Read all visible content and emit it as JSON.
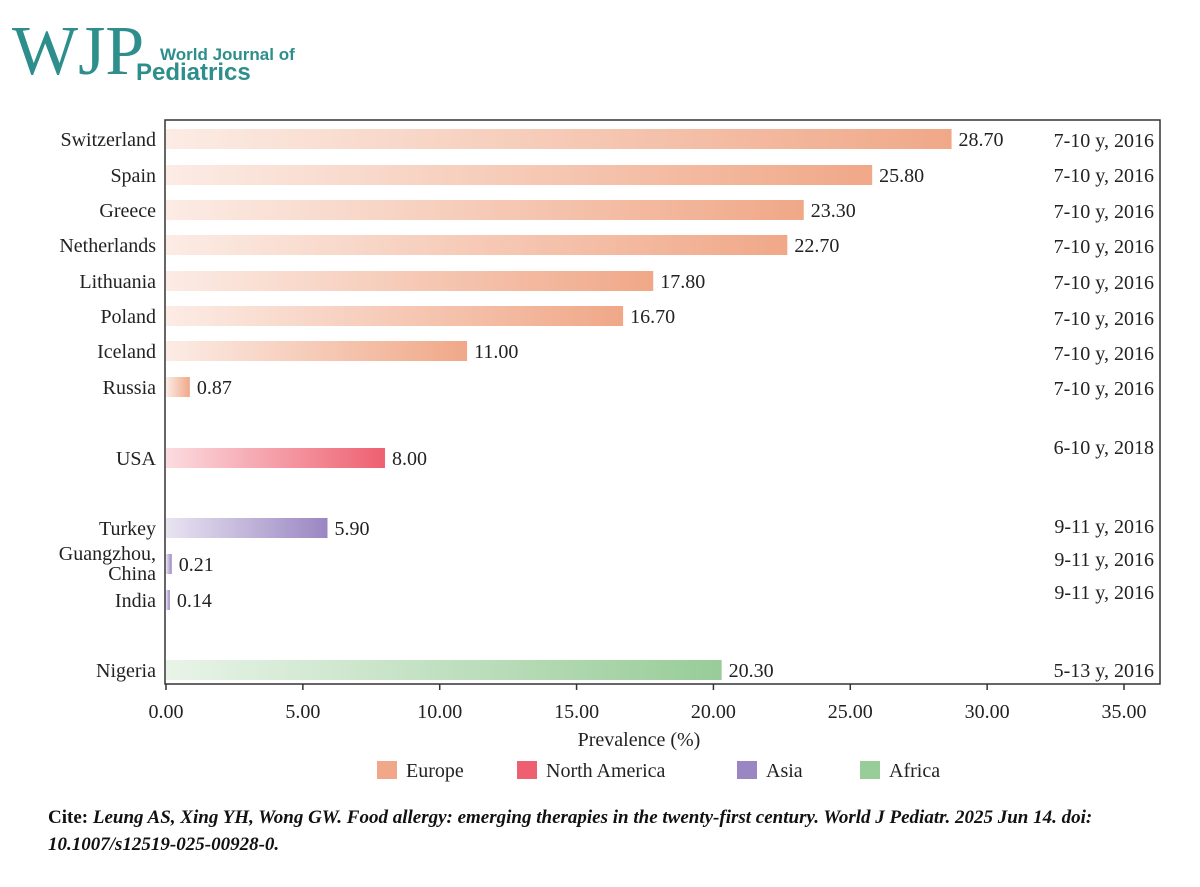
{
  "logo": {
    "letters": "WJP",
    "line1": "World Journal of",
    "line2": "Pediatrics",
    "color": "#2e8e8b"
  },
  "citation": {
    "label": "Cite:",
    "text": "Leung AS, Xing YH, Wong GW. Food allergy: emerging therapies in the twenty-first century. World J Pediatr. 2025 Jun 14. doi: 10.1007/s12519-025-00928-0."
  },
  "chart_data": {
    "type": "bar",
    "orientation": "horizontal",
    "xlabel": "Prevalence (%)",
    "xlim": [
      0,
      35
    ],
    "xticks": [
      "0.00",
      "5.00",
      "10.00",
      "15.00",
      "20.00",
      "25.00",
      "30.00",
      "35.00"
    ],
    "grid": false,
    "legend_position": "bottom",
    "legend": [
      {
        "name": "Europe",
        "color": "#f0a888"
      },
      {
        "name": "North America",
        "color": "#ee6070"
      },
      {
        "name": "Asia",
        "color": "#9a86c2"
      },
      {
        "name": "Africa",
        "color": "#98cc98"
      }
    ],
    "bars": [
      {
        "country": [
          "Switzerland"
        ],
        "value": 28.7,
        "label": "28.70",
        "note": "7-10 y, 2016",
        "region": "Europe"
      },
      {
        "country": [
          "Spain"
        ],
        "value": 25.8,
        "label": "25.80",
        "note": "7-10 y, 2016",
        "region": "Europe"
      },
      {
        "country": [
          "Greece"
        ],
        "value": 23.3,
        "label": "23.30",
        "note": "7-10 y, 2016",
        "region": "Europe"
      },
      {
        "country": [
          "Netherlands"
        ],
        "value": 22.7,
        "label": "22.70",
        "note": "7-10 y, 2016",
        "region": "Europe"
      },
      {
        "country": [
          "Lithuania"
        ],
        "value": 17.8,
        "label": "17.80",
        "note": "7-10 y, 2016",
        "region": "Europe"
      },
      {
        "country": [
          "Poland"
        ],
        "value": 16.7,
        "label": "16.70",
        "note": "7-10 y, 2016",
        "region": "Europe"
      },
      {
        "country": [
          "Iceland"
        ],
        "value": 11.0,
        "label": "11.00",
        "note": "7-10 y, 2016",
        "region": "Europe"
      },
      {
        "country": [
          "Russia"
        ],
        "value": 0.87,
        "label": "0.87",
        "note": "7-10 y, 2016",
        "region": "Europe"
      },
      {
        "country": [
          "USA"
        ],
        "value": 8.0,
        "label": "8.00",
        "note": "6-10 y, 2018",
        "region": "North America"
      },
      {
        "country": [
          "Turkey"
        ],
        "value": 5.9,
        "label": "5.90",
        "note": "9-11 y, 2016",
        "region": "Asia"
      },
      {
        "country": [
          "Guangzhou,",
          "China"
        ],
        "value": 0.21,
        "label": "0.21",
        "note": "9-11 y, 2016",
        "region": "Asia"
      },
      {
        "country": [
          "India"
        ],
        "value": 0.14,
        "label": "0.14",
        "note": "9-11 y, 2016",
        "region": "Asia"
      },
      {
        "country": [
          "Nigeria"
        ],
        "value": 20.3,
        "label": "20.30",
        "note": "5-13 y, 2016",
        "region": "Africa"
      }
    ]
  }
}
